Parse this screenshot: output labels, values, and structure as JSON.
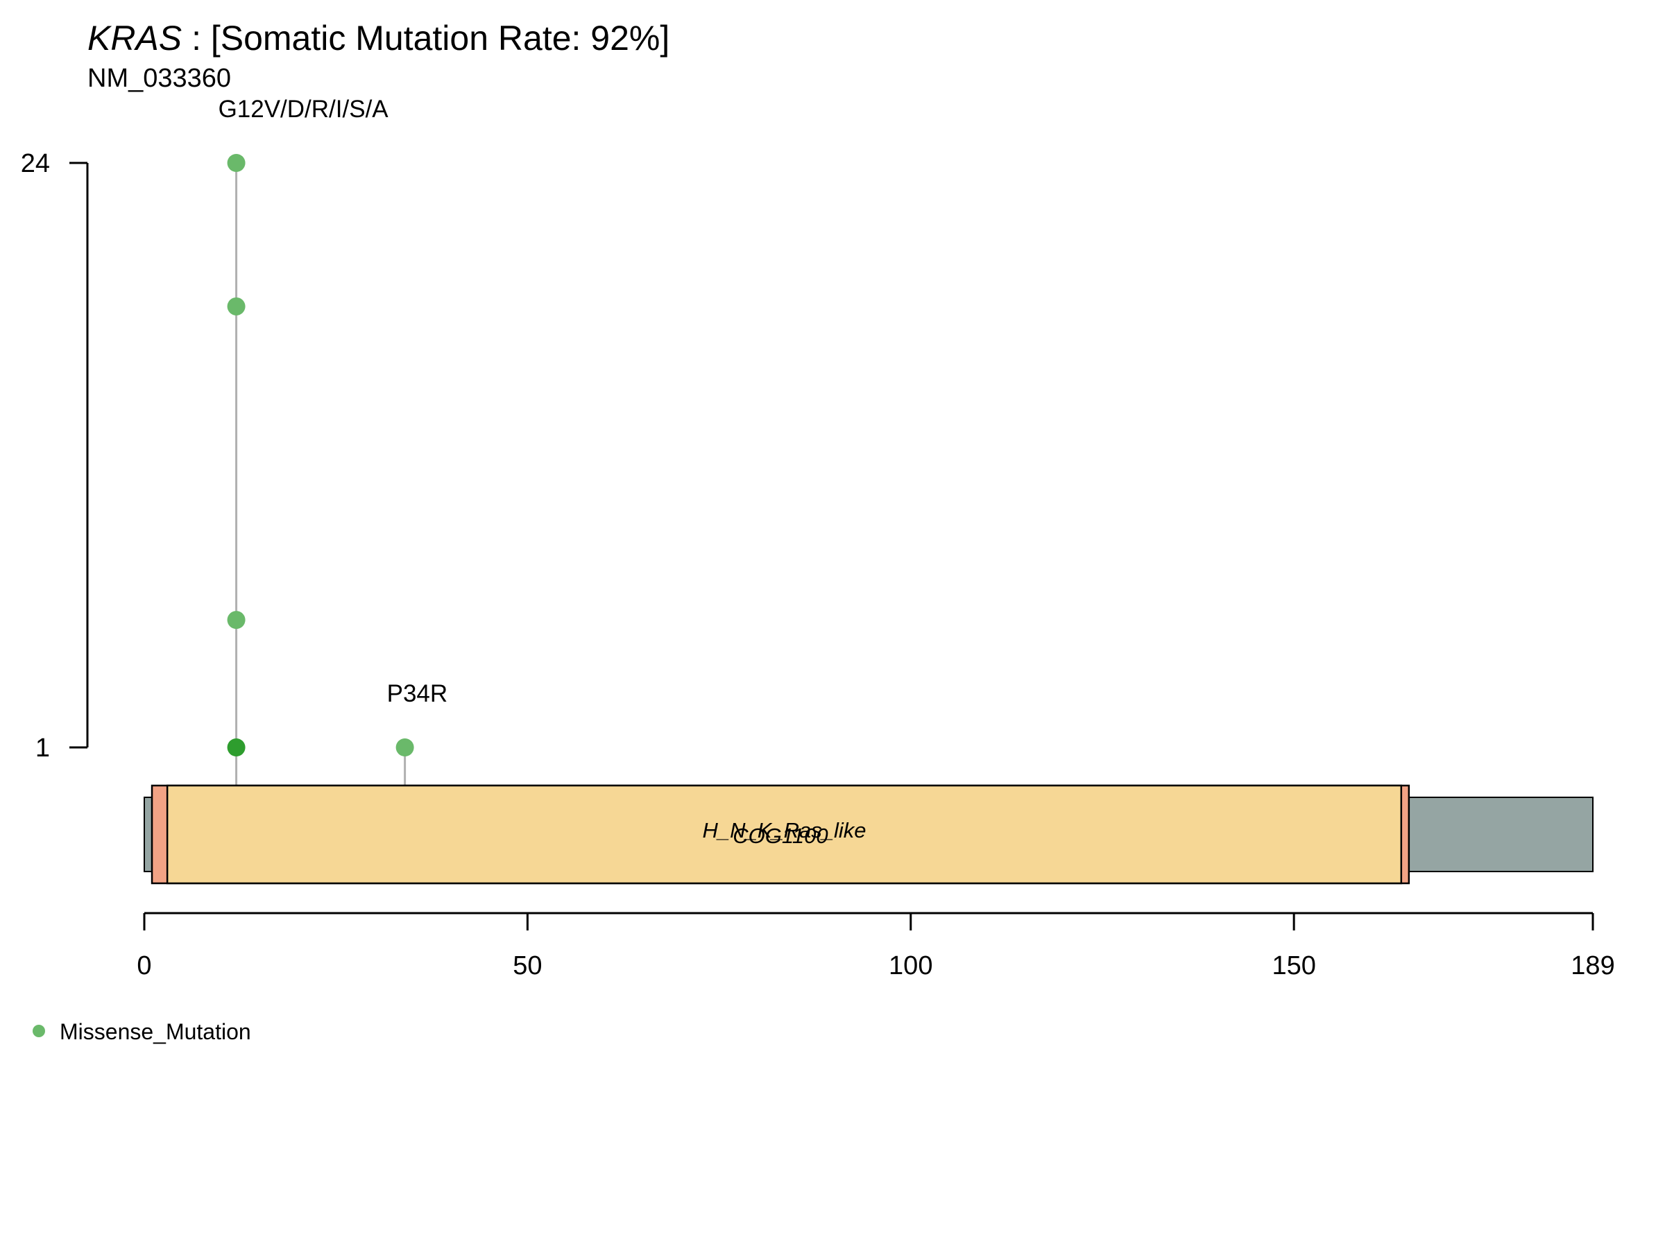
{
  "chart_data": {
    "type": "scatter",
    "subtype": "lollipop",
    "gene": "KRAS",
    "title_rest": " : [Somatic Mutation Rate: 92%]",
    "subtitle": "NM_033360",
    "protein_length": 189,
    "x_ticks": [
      0,
      50,
      100,
      150,
      189
    ],
    "y_ticks": [
      1,
      24
    ],
    "y_range": [
      1,
      24
    ],
    "y_scale": "log",
    "grid": false,
    "legend_position": "bottom-left",
    "mutations": [
      {
        "position": 12,
        "count": 24,
        "type": "Missense_Mutation",
        "color": "#6ab96a"
      },
      {
        "position": 12,
        "count": 11,
        "type": "Missense_Mutation",
        "color": "#6ab96a"
      },
      {
        "position": 12,
        "count": 2,
        "type": "Missense_Mutation",
        "color": "#6ab96a"
      },
      {
        "position": 12,
        "count": 1,
        "type": "Missense_Mutation",
        "color": "#2e9d2e"
      },
      {
        "position": 34,
        "count": 1,
        "type": "Missense_Mutation",
        "color": "#6ab96a"
      }
    ],
    "mutation_labels": [
      {
        "position": 12,
        "text": "G12V/D/R/I/S/A"
      },
      {
        "position": 34,
        "text": "P34R"
      }
    ],
    "domains": [
      {
        "start": 1,
        "end": 165,
        "color": "#f2a385",
        "name": "COG1100"
      },
      {
        "start": 3,
        "end": 164,
        "color": "#f6d795",
        "name": "H_N_K_Ras_like"
      }
    ],
    "protein_color": "#95a5a3",
    "legend": [
      {
        "label": "Missense_Mutation",
        "color": "#6ab96a"
      }
    ]
  }
}
